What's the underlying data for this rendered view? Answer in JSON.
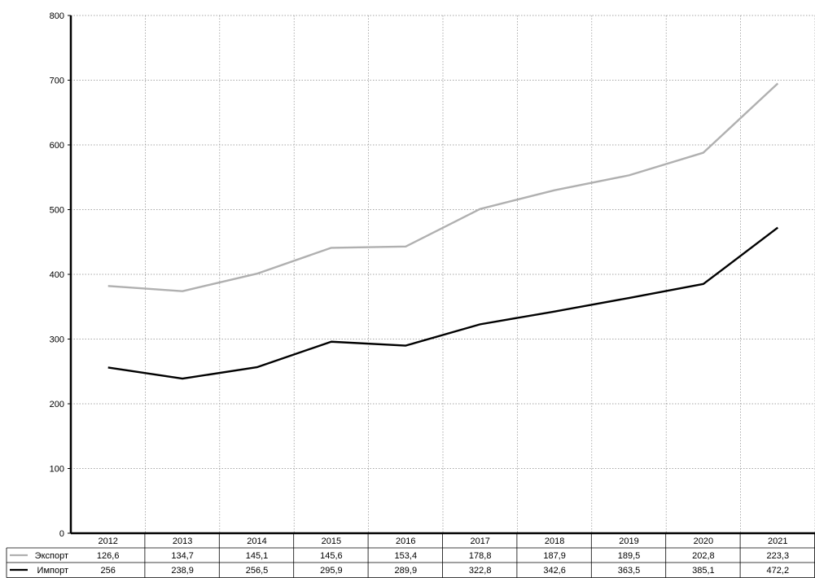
{
  "chart_data": {
    "type": "line",
    "categories": [
      "2012",
      "2013",
      "2014",
      "2015",
      "2016",
      "2017",
      "2018",
      "2019",
      "2020",
      "2021"
    ],
    "ylim": [
      0,
      800
    ],
    "yticks": [
      0,
      100,
      200,
      300,
      400,
      500,
      600,
      700,
      800
    ],
    "grid": true,
    "series": [
      {
        "name": "Экспорт",
        "color": "#b0b0b0",
        "line_values": [
          382,
          374,
          401,
          441,
          443,
          501,
          530,
          553,
          588,
          695
        ],
        "table_values": [
          "126,6",
          "134,7",
          "145,1",
          "145,6",
          "153,4",
          "178,8",
          "187,9",
          "189,5",
          "202,8",
          "223,3"
        ]
      },
      {
        "name": "Импорт",
        "color": "#000000",
        "line_values": [
          256,
          238.9,
          256.5,
          295.9,
          289.9,
          322.8,
          342.6,
          363.5,
          385.1,
          472.2
        ],
        "table_values": [
          "256",
          "238,9",
          "256,5",
          "295,9",
          "289,9",
          "322,8",
          "342,6",
          "363,5",
          "385,1",
          "472,2"
        ]
      }
    ]
  }
}
